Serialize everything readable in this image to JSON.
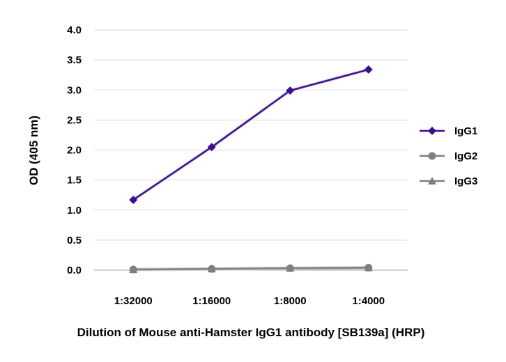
{
  "chart_data": {
    "type": "line",
    "categories": [
      "1:32000",
      "1:16000",
      "1:8000",
      "1:4000"
    ],
    "series": [
      {
        "name": "IgG1",
        "values": [
          1.17,
          2.05,
          2.99,
          3.34
        ],
        "color": "#3d0d93",
        "marker": "diamond"
      },
      {
        "name": "IgG2",
        "values": [
          0.01,
          0.02,
          0.03,
          0.04
        ],
        "color": "#7f7f7f",
        "marker": "circle"
      },
      {
        "name": "IgG3",
        "values": [
          0.01,
          0.02,
          0.03,
          0.04
        ],
        "color": "#7f7f7f",
        "marker": "triangle"
      }
    ],
    "xlabel": "Dilution of Mouse anti-Hamster IgG1 antibody [SB139a] (HRP)",
    "ylabel": "OD (405 nm)",
    "ylim": [
      0,
      4.0
    ],
    "yticks": [
      "0.0",
      "0.5",
      "1.0",
      "1.5",
      "2.0",
      "2.5",
      "3.0",
      "3.5",
      "4.0"
    ],
    "grid": true,
    "legend_position": "right"
  }
}
